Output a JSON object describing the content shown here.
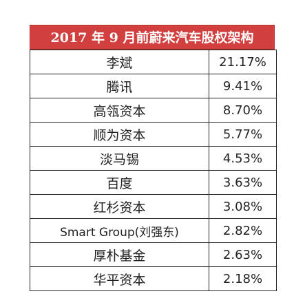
{
  "title": "2017 年 9 月前蔚来汽车股权架构",
  "rows": [
    {
      "holder": "李斌",
      "share": "21.17%"
    },
    {
      "holder": "腾讯",
      "share": "9.41%"
    },
    {
      "holder": "高瓴资本",
      "share": "8.70%"
    },
    {
      "holder": "顺为资本",
      "share": "5.77%"
    },
    {
      "holder": "淡马锡",
      "share": "4.53%"
    },
    {
      "holder": "百度",
      "share": "3.63%"
    },
    {
      "holder": "红杉资本",
      "share": "3.08%"
    },
    {
      "holder": "Smart Group(刘强东)",
      "share": "2.82%"
    },
    {
      "holder": "厚朴基金",
      "share": "2.63%"
    },
    {
      "holder": "华平资本",
      "share": "2.18%"
    }
  ],
  "colors": {
    "title_background": "#d23f3f",
    "title_text": "#ffffff",
    "border": "#222222"
  }
}
